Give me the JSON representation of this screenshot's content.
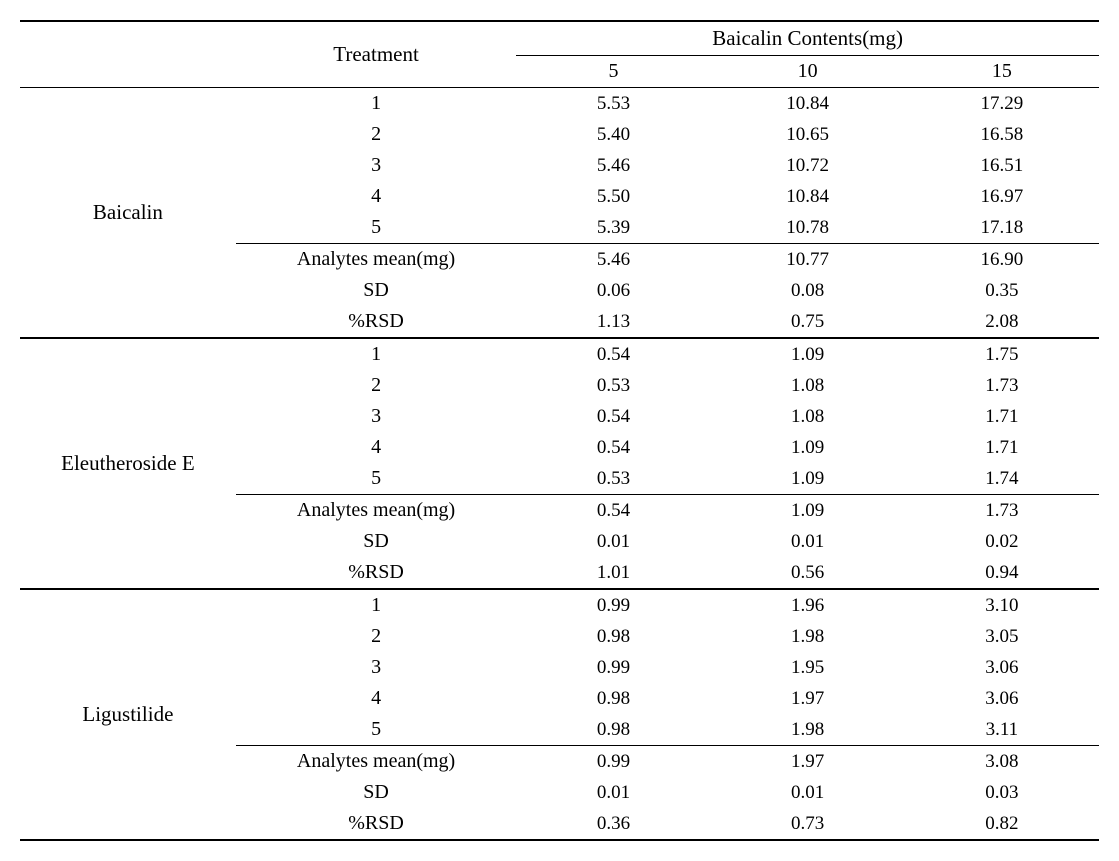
{
  "table": {
    "headers": {
      "treatment": "Treatment",
      "contents_header": "Baicalin Contents(mg)",
      "col_5": "5",
      "col_10": "10",
      "col_15": "15"
    },
    "stat_labels": {
      "mean": "Analytes mean(mg)",
      "sd": "SD",
      "rsd": "%RSD"
    },
    "groups": [
      {
        "name": "Baicalin",
        "rows": [
          {
            "t": "1",
            "v": [
              "5.53",
              "10.84",
              "17.29"
            ]
          },
          {
            "t": "2",
            "v": [
              "5.40",
              "10.65",
              "16.58"
            ]
          },
          {
            "t": "3",
            "v": [
              "5.46",
              "10.72",
              "16.51"
            ]
          },
          {
            "t": "4",
            "v": [
              "5.50",
              "10.84",
              "16.97"
            ]
          },
          {
            "t": "5",
            "v": [
              "5.39",
              "10.78",
              "17.18"
            ]
          }
        ],
        "mean": [
          "5.46",
          "10.77",
          "16.90"
        ],
        "sd": [
          "0.06",
          "0.08",
          "0.35"
        ],
        "rsd": [
          "1.13",
          "0.75",
          "2.08"
        ]
      },
      {
        "name": "Eleutheroside E",
        "rows": [
          {
            "t": "1",
            "v": [
              "0.54",
              "1.09",
              "1.75"
            ]
          },
          {
            "t": "2",
            "v": [
              "0.53",
              "1.08",
              "1.73"
            ]
          },
          {
            "t": "3",
            "v": [
              "0.54",
              "1.08",
              "1.71"
            ]
          },
          {
            "t": "4",
            "v": [
              "0.54",
              "1.09",
              "1.71"
            ]
          },
          {
            "t": "5",
            "v": [
              "0.53",
              "1.09",
              "1.74"
            ]
          }
        ],
        "mean": [
          "0.54",
          "1.09",
          "1.73"
        ],
        "sd": [
          "0.01",
          "0.01",
          "0.02"
        ],
        "rsd": [
          "1.01",
          "0.56",
          "0.94"
        ]
      },
      {
        "name": "Ligustilide",
        "rows": [
          {
            "t": "1",
            "v": [
              "0.99",
              "1.96",
              "3.10"
            ]
          },
          {
            "t": "2",
            "v": [
              "0.98",
              "1.98",
              "3.05"
            ]
          },
          {
            "t": "3",
            "v": [
              "0.99",
              "1.95",
              "3.06"
            ]
          },
          {
            "t": "4",
            "v": [
              "0.98",
              "1.97",
              "3.06"
            ]
          },
          {
            "t": "5",
            "v": [
              "0.98",
              "1.98",
              "3.11"
            ]
          }
        ],
        "mean": [
          "0.99",
          "1.97",
          "3.08"
        ],
        "sd": [
          "0.01",
          "0.01",
          "0.03"
        ],
        "rsd": [
          "0.36",
          "0.73",
          "0.82"
        ]
      }
    ],
    "colors": {
      "text": "#000000",
      "background": "#ffffff",
      "border": "#000000"
    },
    "fonts": {
      "family": "Times New Roman",
      "header_size": 21,
      "body_size": 19
    }
  }
}
